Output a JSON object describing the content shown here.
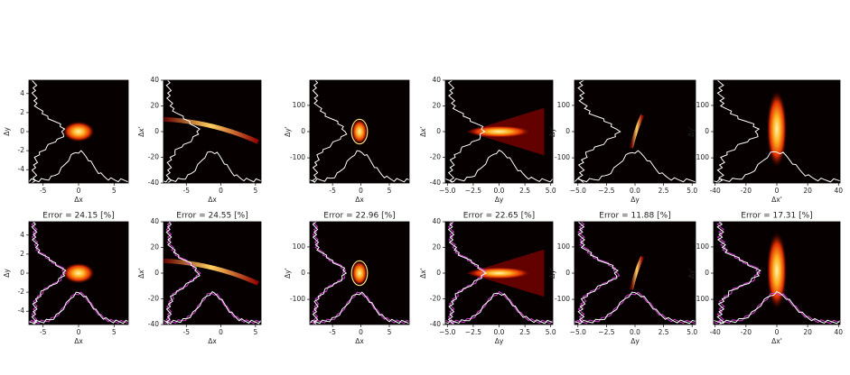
{
  "chart_data": [
    {
      "type": "heatmap",
      "xlabel": "Δx",
      "ylabel": "Δy",
      "xlim": [
        -7,
        7
      ],
      "ylim": [
        -5.4,
        5.4
      ],
      "xticks": [
        -5,
        0,
        5
      ],
      "yticks": [
        -4,
        -2,
        0,
        2,
        4
      ]
    },
    {
      "type": "heatmap",
      "xlabel": "Δx",
      "ylabel": "Δx'",
      "xlim": [
        -8.3,
        5.8
      ],
      "ylim": [
        -40,
        40
      ],
      "xticks": [
        -5,
        0,
        5
      ],
      "yticks": [
        -40,
        -20,
        0,
        20,
        40
      ]
    },
    {
      "type": "heatmap",
      "xlabel": "Δx",
      "ylabel": "Δy'",
      "xlim": [
        -9,
        8.5
      ],
      "ylim": [
        -196,
        196
      ],
      "xticks": [
        -5,
        0,
        5
      ],
      "yticks": [
        -100,
        0,
        100
      ]
    },
    {
      "type": "heatmap",
      "xlabel": "Δy",
      "ylabel": "Δx'",
      "xlim": [
        -5.2,
        5.2
      ],
      "ylim": [
        -40,
        40
      ],
      "xticks": [
        {
          "value": -5,
          "label": "−5.0"
        },
        {
          "value": -2.5,
          "label": "−2.5"
        },
        {
          "value": 0,
          "label": "0.0"
        },
        {
          "value": 2.5,
          "label": "2.5"
        },
        {
          "value": 5,
          "label": "5.0"
        }
      ],
      "yticks": [
        -40,
        -20,
        0,
        20,
        40
      ]
    },
    {
      "type": "heatmap",
      "xlabel": "Δy",
      "ylabel": "Δy'",
      "xlim": [
        -5.3,
        5.3
      ],
      "ylim": [
        -196,
        196
      ],
      "xticks": [
        {
          "value": -5,
          "label": "−5.0"
        },
        {
          "value": -2.5,
          "label": "−2.5"
        },
        {
          "value": 0,
          "label": "0.0"
        },
        {
          "value": 2.5,
          "label": "2.5"
        },
        {
          "value": 5,
          "label": "5.0"
        }
      ],
      "yticks": [
        -100,
        0,
        100
      ]
    },
    {
      "type": "heatmap",
      "xlabel": "Δx'",
      "ylabel": "Δy'",
      "xlim": [
        -41,
        41
      ],
      "ylim": [
        -196,
        196
      ],
      "xticks": [
        -40,
        -20,
        0,
        20,
        40
      ],
      "yticks": [
        -100,
        0,
        100
      ]
    },
    {
      "type": "heatmap",
      "title": "Error = 24.15 [%]",
      "xlabel": "Δx",
      "ylabel": "Δy",
      "xlim": [
        -7,
        7
      ],
      "ylim": [
        -5.4,
        5.4
      ],
      "xticks": [
        -5,
        0,
        5
      ],
      "yticks": [
        -4,
        -2,
        0,
        2,
        4
      ]
    },
    {
      "type": "heatmap",
      "title": "Error = 24.55 [%]",
      "xlabel": "Δx",
      "ylabel": "Δx'",
      "xlim": [
        -8.3,
        5.8
      ],
      "ylim": [
        -40,
        40
      ],
      "xticks": [
        -5,
        0,
        5
      ],
      "yticks": [
        -40,
        -20,
        0,
        20,
        40
      ]
    },
    {
      "type": "heatmap",
      "title": "Error = 22.96 [%]",
      "xlabel": "Δx",
      "ylabel": "Δy'",
      "xlim": [
        -9,
        8.5
      ],
      "ylim": [
        -196,
        196
      ],
      "xticks": [
        -5,
        0,
        5
      ],
      "yticks": [
        -100,
        0,
        100
      ]
    },
    {
      "type": "heatmap",
      "title": "Error = 22.65 [%]",
      "xlabel": "Δy",
      "ylabel": "Δx'",
      "xlim": [
        -5.2,
        5.2
      ],
      "ylim": [
        -40,
        40
      ],
      "xticks": [
        {
          "value": -5,
          "label": "−5.0"
        },
        {
          "value": -2.5,
          "label": "−2.5"
        },
        {
          "value": 0,
          "label": "0.0"
        },
        {
          "value": 2.5,
          "label": "2.5"
        },
        {
          "value": 5,
          "label": "5.0"
        }
      ],
      "yticks": [
        -40,
        -20,
        0,
        20,
        40
      ]
    },
    {
      "type": "heatmap",
      "title": "Error = 11.88 [%]",
      "xlabel": "Δy",
      "ylabel": "Δy'",
      "xlim": [
        -5.3,
        5.3
      ],
      "ylim": [
        -196,
        196
      ],
      "xticks": [
        {
          "value": -5,
          "label": "−5.0"
        },
        {
          "value": -2.5,
          "label": "−2.5"
        },
        {
          "value": 0,
          "label": "0.0"
        },
        {
          "value": 2.5,
          "label": "2.5"
        },
        {
          "value": 5,
          "label": "5.0"
        }
      ],
      "yticks": [
        -100,
        0,
        100
      ]
    },
    {
      "type": "heatmap",
      "title": "Error = 17.31 [%]",
      "xlabel": "Δx'",
      "ylabel": "Δy'",
      "xlim": [
        -41,
        41
      ],
      "ylim": [
        -196,
        196
      ],
      "xticks": [
        -40,
        -20,
        0,
        20,
        40
      ],
      "yticks": [
        -100,
        0,
        100
      ]
    }
  ]
}
